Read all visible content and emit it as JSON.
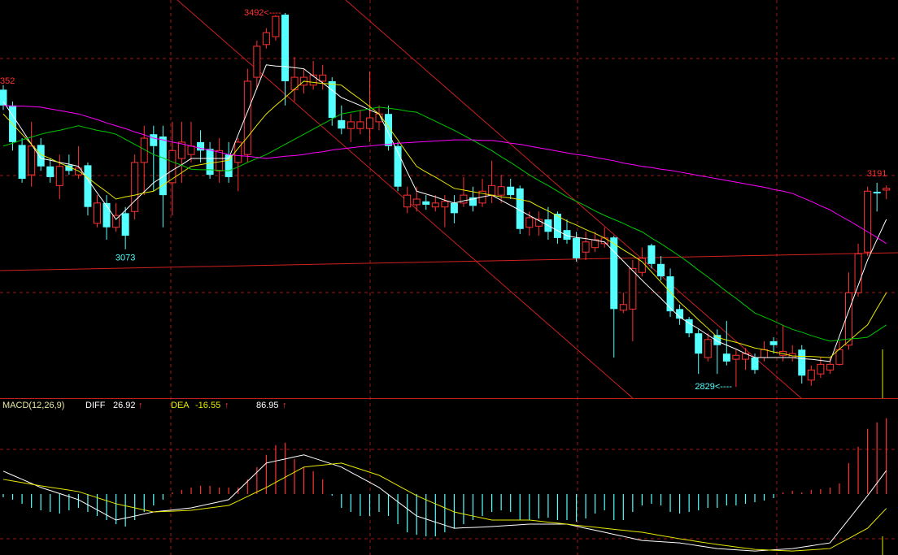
{
  "chart_data": [
    {
      "type": "candlestick",
      "ylim": [
        2809,
        3515
      ],
      "up_color": "#ff3232",
      "down_color": "#54ffff",
      "candles": {
        "open": [
          3356,
          3328,
          3258,
          3205,
          3258,
          3220,
          3186,
          3222,
          3205,
          3222,
          3119,
          3155,
          3112,
          3137,
          3140,
          3227,
          3277,
          3273,
          3191,
          3234,
          3241,
          3263,
          3251,
          3212,
          3241,
          3227,
          3241,
          3378,
          3436,
          3450,
          3489,
          3356,
          3364,
          3364,
          3371,
          3371,
          3302,
          3287,
          3287,
          3287,
          3299,
          3313,
          3256,
          3148,
          3152,
          3158,
          3148,
          3148,
          3155,
          3155,
          3165,
          3155,
          3169,
          3169,
          3184,
          3181,
          3112,
          3114,
          3126,
          3136,
          3107,
          3093,
          3068,
          3076,
          3083,
          3094,
          2965,
          2967,
          3032,
          3080,
          3047,
          3025,
          2967,
          2949,
          2924,
          2881,
          2921,
          2888,
          2878,
          2878,
          2881,
          2881,
          2910,
          2885,
          2881,
          2895,
          2841,
          2852,
          2859,
          2869,
          2903,
          2996,
          3068,
          3175,
          3178
        ],
        "high": [
          3364,
          3335,
          3270,
          3299,
          3270,
          3234,
          3241,
          3241,
          3256,
          3227,
          3169,
          3169,
          3155,
          3148,
          3241,
          3292,
          3292,
          3292,
          3299,
          3299,
          3299,
          3284,
          3263,
          3270,
          3263,
          3270,
          3393,
          3443,
          3465,
          3488,
          3492,
          3414,
          3393,
          3407,
          3400,
          3378,
          3328,
          3313,
          3320,
          3388,
          3328,
          3328,
          3263,
          3184,
          3184,
          3169,
          3169,
          3169,
          3169,
          3201,
          3184,
          3198,
          3230,
          3205,
          3198,
          3186,
          3140,
          3140,
          3148,
          3140,
          3126,
          3104,
          3104,
          3104,
          3112,
          3097,
          2996,
          3054,
          3076,
          3083,
          3061,
          3039,
          2975,
          2953,
          2931,
          2924,
          2931,
          2946,
          2895,
          2898,
          2888,
          2910,
          2917,
          2939,
          2903,
          2903,
          2867,
          2881,
          2881,
          2910,
          3032,
          3083,
          3184,
          3191,
          3186
        ],
        "low": [
          3320,
          3248,
          3191,
          3184,
          3212,
          3191,
          3162,
          3205,
          3198,
          3133,
          3112,
          3090,
          3104,
          3073,
          3126,
          3169,
          3176,
          3112,
          3133,
          3191,
          3227,
          3227,
          3198,
          3191,
          3191,
          3176,
          3227,
          3356,
          3429,
          3443,
          3328,
          3335,
          3349,
          3356,
          3356,
          3292,
          3277,
          3263,
          3277,
          3263,
          3284,
          3248,
          3176,
          3137,
          3140,
          3143,
          3140,
          3112,
          3119,
          3148,
          3140,
          3148,
          3155,
          3155,
          3162,
          3100,
          3097,
          3097,
          3090,
          3083,
          3083,
          3051,
          3054,
          3068,
          3076,
          2881,
          2960,
          2910,
          3025,
          3039,
          3018,
          2953,
          2939,
          2917,
          2852,
          2874,
          2852,
          2867,
          2829,
          2859,
          2852,
          2874,
          2888,
          2874,
          2874,
          2835,
          2831,
          2845,
          2852,
          2867,
          2895,
          2989,
          3061,
          3140,
          3162
        ],
        "close": [
          3328,
          3263,
          3198,
          3256,
          3220,
          3201,
          3220,
          3212,
          3217,
          3148,
          3155,
          3112,
          3133,
          3097,
          3227,
          3270,
          3256,
          3169,
          3248,
          3263,
          3256,
          3248,
          3205,
          3248,
          3201,
          3263,
          3371,
          3433,
          3457,
          3486,
          3371,
          3378,
          3378,
          3382,
          3382,
          3306,
          3287,
          3299,
          3299,
          3306,
          3313,
          3256,
          3184,
          3169,
          3162,
          3152,
          3155,
          3158,
          3137,
          3169,
          3150,
          3176,
          3186,
          3184,
          3169,
          3109,
          3129,
          3126,
          3104,
          3093,
          3090,
          3057,
          3086,
          3090,
          3093,
          2967,
          2975,
          3039,
          3057,
          3047,
          3025,
          2963,
          2950,
          2924,
          2888,
          2913,
          2903,
          2874,
          2885,
          2888,
          2859,
          2895,
          2903,
          2892,
          2888,
          2849,
          2859,
          2869,
          2869,
          2895,
          2996,
          3065,
          3176,
          3172,
          3181
        ]
      },
      "series": [
        {
          "color": "#ffffff",
          "values": [
            3335,
            3310,
            3285,
            3259,
            3234,
            3231,
            3227,
            3224,
            3220,
            3197,
            3173,
            3150,
            3126,
            3142,
            3159,
            3175,
            3191,
            3202,
            3213,
            3223,
            3234,
            3234,
            3234,
            3234,
            3234,
            3276,
            3317,
            3359,
            3400,
            3398,
            3397,
            3395,
            3393,
            3380,
            3368,
            3355,
            3342,
            3335,
            3328,
            3320,
            3313,
            3279,
            3245,
            3210,
            3176,
            3171,
            3166,
            3160,
            3155,
            3159,
            3162,
            3166,
            3169,
            3160,
            3151,
            3142,
            3133,
            3124,
            3115,
            3106,
            3097,
            3094,
            3092,
            3089,
            3086,
            3069,
            3052,
            3035,
            3018,
            3002,
            2986,
            2969,
            2953,
            2942,
            2932,
            2921,
            2910,
            2903,
            2896,
            2888,
            2881,
            2881,
            2881,
            2881,
            2881,
            2879,
            2878,
            2876,
            2874,
            2919,
            2964,
            3009,
            3054,
            3090,
            3126
          ]
        },
        {
          "color": "#e8e800",
          "values": [
            3313,
            3295,
            3277,
            3259,
            3241,
            3234,
            3226,
            3219,
            3212,
            3200,
            3187,
            3175,
            3162,
            3166,
            3169,
            3173,
            3176,
            3187,
            3198,
            3209,
            3220,
            3223,
            3226,
            3228,
            3231,
            3252,
            3272,
            3293,
            3313,
            3328,
            3342,
            3357,
            3371,
            3369,
            3367,
            3366,
            3364,
            3351,
            3339,
            3326,
            3313,
            3290,
            3267,
            3243,
            3220,
            3210,
            3201,
            3191,
            3181,
            3178,
            3175,
            3172,
            3169,
            3166,
            3164,
            3161,
            3158,
            3149,
            3141,
            3132,
            3123,
            3116,
            3108,
            3101,
            3093,
            3083,
            3072,
            3062,
            3051,
            3033,
            3015,
            2997,
            2979,
            2964,
            2948,
            2933,
            2917,
            2912,
            2908,
            2903,
            2898,
            2895,
            2891,
            2888,
            2884,
            2883,
            2883,
            2882,
            2881,
            2896,
            2910,
            2925,
            2939,
            2968,
            2996
          ]
        },
        {
          "color": "#00c800",
          "values": [
            3256,
            3261,
            3267,
            3272,
            3277,
            3281,
            3284,
            3288,
            3292,
            3288,
            3284,
            3281,
            3277,
            3268,
            3259,
            3250,
            3241,
            3235,
            3228,
            3222,
            3215,
            3214,
            3214,
            3213,
            3212,
            3219,
            3227,
            3234,
            3241,
            3250,
            3259,
            3268,
            3277,
            3286,
            3295,
            3304,
            3313,
            3316,
            3319,
            3322,
            3325,
            3323,
            3321,
            3318,
            3316,
            3308,
            3300,
            3292,
            3284,
            3275,
            3266,
            3257,
            3248,
            3237,
            3227,
            3216,
            3205,
            3195,
            3186,
            3176,
            3166,
            3158,
            3150,
            3141,
            3133,
            3126,
            3119,
            3111,
            3104,
            3093,
            3083,
            3072,
            3061,
            3049,
            3036,
            3024,
            3011,
            2998,
            2986,
            2973,
            2960,
            2953,
            2946,
            2938,
            2931,
            2926,
            2920,
            2915,
            2910,
            2912,
            2914,
            2915,
            2917,
            2928,
            2939
          ]
        },
        {
          "color": "#ff00ff",
          "values": [
            3328,
            3327,
            3327,
            3326,
            3325,
            3322,
            3319,
            3316,
            3313,
            3308,
            3303,
            3297,
            3292,
            3287,
            3281,
            3276,
            3270,
            3267,
            3263,
            3260,
            3256,
            3252,
            3249,
            3245,
            3241,
            3239,
            3238,
            3236,
            3234,
            3236,
            3238,
            3239,
            3241,
            3244,
            3246,
            3249,
            3251,
            3253,
            3255,
            3256,
            3258,
            3259,
            3261,
            3262,
            3263,
            3264,
            3265,
            3266,
            3267,
            3267,
            3267,
            3266,
            3266,
            3264,
            3261,
            3259,
            3256,
            3253,
            3250,
            3247,
            3244,
            3241,
            3239,
            3236,
            3233,
            3230,
            3226,
            3223,
            3220,
            3218,
            3215,
            3213,
            3210,
            3207,
            3204,
            3201,
            3198,
            3195,
            3192,
            3189,
            3186,
            3183,
            3179,
            3176,
            3172,
            3165,
            3158,
            3150,
            3143,
            3133,
            3124,
            3114,
            3104,
            3094,
            3083
          ]
        }
      ],
      "annotations": [
        {
          "value": 3492,
          "label": "3492<----",
          "at": "high",
          "color": "#ff3232"
        },
        {
          "value": 3073,
          "label": "3073",
          "at": "low",
          "color": "#54ffff"
        },
        {
          "value": 2829,
          "label": "2829<----",
          "at": "low",
          "color": "#54ffff"
        },
        {
          "value": 3191,
          "label": "3191",
          "at": "high",
          "color": "#ff3232"
        }
      ],
      "edge_label": "352"
    },
    {
      "type": "macd",
      "title": "MACD(12,26,9)",
      "ylim": [
        -70,
        110
      ],
      "trend_mark": "↑",
      "up_color": "#ff3232",
      "down_color": "#54ffff",
      "readout": 86.95,
      "readout_color": "#ffffff",
      "values": [
        -3.7,
        -6.5,
        -11.2,
        -15.9,
        -18.7,
        -20.6,
        -22.4,
        -18.7,
        -15.9,
        -20.6,
        -25.2,
        -29.9,
        -34.6,
        -37.4,
        -29.9,
        -20.6,
        -13.1,
        -6.5,
        1.9,
        4.7,
        7.5,
        9.4,
        9.4,
        7.5,
        7.5,
        7.5,
        16.8,
        30.9,
        44.9,
        56.1,
        58.9,
        40.2,
        30.9,
        26.2,
        16.8,
        -1.9,
        -15.9,
        -20.6,
        -25.2,
        -25.2,
        -20.6,
        -25.2,
        -34.6,
        -43.9,
        -46.8,
        -48.6,
        -48.6,
        -43.9,
        -39.3,
        -34.6,
        -29.9,
        -25.2,
        -20.6,
        -18.7,
        -20.6,
        -29.9,
        -29.9,
        -28.1,
        -27.1,
        -29.9,
        -29.9,
        -31.8,
        -28.1,
        -22.4,
        -18.7,
        -29.9,
        -29.9,
        -20.6,
        -13.1,
        -11.2,
        -13.1,
        -20.6,
        -22.4,
        -20.6,
        -18.7,
        -15.9,
        -15.9,
        -13.1,
        -13.1,
        -11.2,
        -9.4,
        -7.5,
        -4.7,
        1.9,
        3.7,
        1.9,
        4.7,
        5.6,
        7.5,
        12.2,
        35.5,
        54.2,
        74.8,
        82.3,
        86.95
      ],
      "series": [
        {
          "name": "DIFF",
          "color": "#ffffff",
          "readout": 26.92,
          "values": [
            26.2,
            21.5,
            16.9,
            12.2,
            7.5,
            4.0,
            0.5,
            -3.0,
            -6.5,
            -12.4,
            -18.2,
            -24.1,
            -29.9,
            -27.6,
            -25.3,
            -22.9,
            -20.6,
            -19.4,
            -18.3,
            -17.1,
            -15.9,
            -13.6,
            -11.2,
            -8.9,
            -6.5,
            4.0,
            14.5,
            25.0,
            35.5,
            37.9,
            40.2,
            42.6,
            44.9,
            41.4,
            37.9,
            34.4,
            30.9,
            25.0,
            19.2,
            13.4,
            7.5,
            -0.7,
            -8.9,
            -17.0,
            -25.2,
            -28.7,
            -32.3,
            -35.8,
            -39.3,
            -38.8,
            -38.4,
            -37.9,
            -37.4,
            -36.7,
            -36.0,
            -35.3,
            -34.6,
            -34.6,
            -34.6,
            -34.6,
            -34.6,
            -36.9,
            -39.3,
            -41.6,
            -43.9,
            -46.3,
            -48.6,
            -51.0,
            -53.3,
            -54.0,
            -54.7,
            -55.4,
            -56.1,
            -57.7,
            -59.4,
            -61.0,
            -62.6,
            -63.3,
            -64.1,
            -64.8,
            -65.5,
            -64.8,
            -64.1,
            -63.3,
            -62.6,
            -61.0,
            -59.4,
            -57.7,
            -56.1,
            -42.5,
            -29.0,
            -15.4,
            -1.9,
            12.5,
            26.92
          ]
        },
        {
          "name": "DEA",
          "color": "#e8e800",
          "readout": -16.55,
          "values": [
            16.8,
            15.0,
            13.1,
            11.3,
            9.4,
            7.8,
            6.1,
            4.5,
            2.8,
            -0.7,
            -4.2,
            -7.7,
            -11.2,
            -13.6,
            -15.9,
            -18.3,
            -20.6,
            -20.1,
            -19.7,
            -19.2,
            -18.7,
            -17.3,
            -15.9,
            -14.5,
            -13.1,
            -8.0,
            -2.8,
            2.4,
            7.5,
            13.4,
            19.2,
            25.1,
            30.9,
            32.1,
            33.2,
            34.4,
            35.5,
            32.0,
            28.5,
            25.0,
            21.5,
            15.7,
            9.8,
            4.0,
            -1.9,
            -6.6,
            -11.3,
            -15.9,
            -20.6,
            -23.0,
            -25.3,
            -27.6,
            -29.9,
            -29.9,
            -29.9,
            -29.9,
            -29.9,
            -31.1,
            -32.3,
            -33.4,
            -34.6,
            -35.8,
            -37.0,
            -38.1,
            -39.3,
            -40.5,
            -41.6,
            -42.8,
            -43.9,
            -45.8,
            -47.7,
            -49.5,
            -51.4,
            -53.0,
            -54.7,
            -56.3,
            -57.9,
            -59.3,
            -60.8,
            -62.2,
            -63.6,
            -64.1,
            -64.6,
            -65.0,
            -65.5,
            -64.8,
            -64.1,
            -63.3,
            -62.6,
            -56.8,
            -51.0,
            -45.1,
            -39.3,
            -27.9,
            -16.55
          ]
        }
      ]
    }
  ]
}
